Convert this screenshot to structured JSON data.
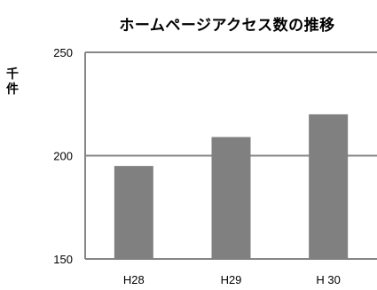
{
  "chart_data": {
    "type": "bar",
    "title": "ホームページアクセス数の推移",
    "ylabel": "千件",
    "categories": [
      "H28",
      "H29",
      "H 30"
    ],
    "values": [
      195,
      209,
      220
    ],
    "ylim": [
      150,
      250
    ],
    "yticks": [
      "250",
      "200",
      "150"
    ],
    "grid": true,
    "colors": {
      "bar": "#808080",
      "grid": "#868686",
      "axis": "#868686"
    }
  }
}
